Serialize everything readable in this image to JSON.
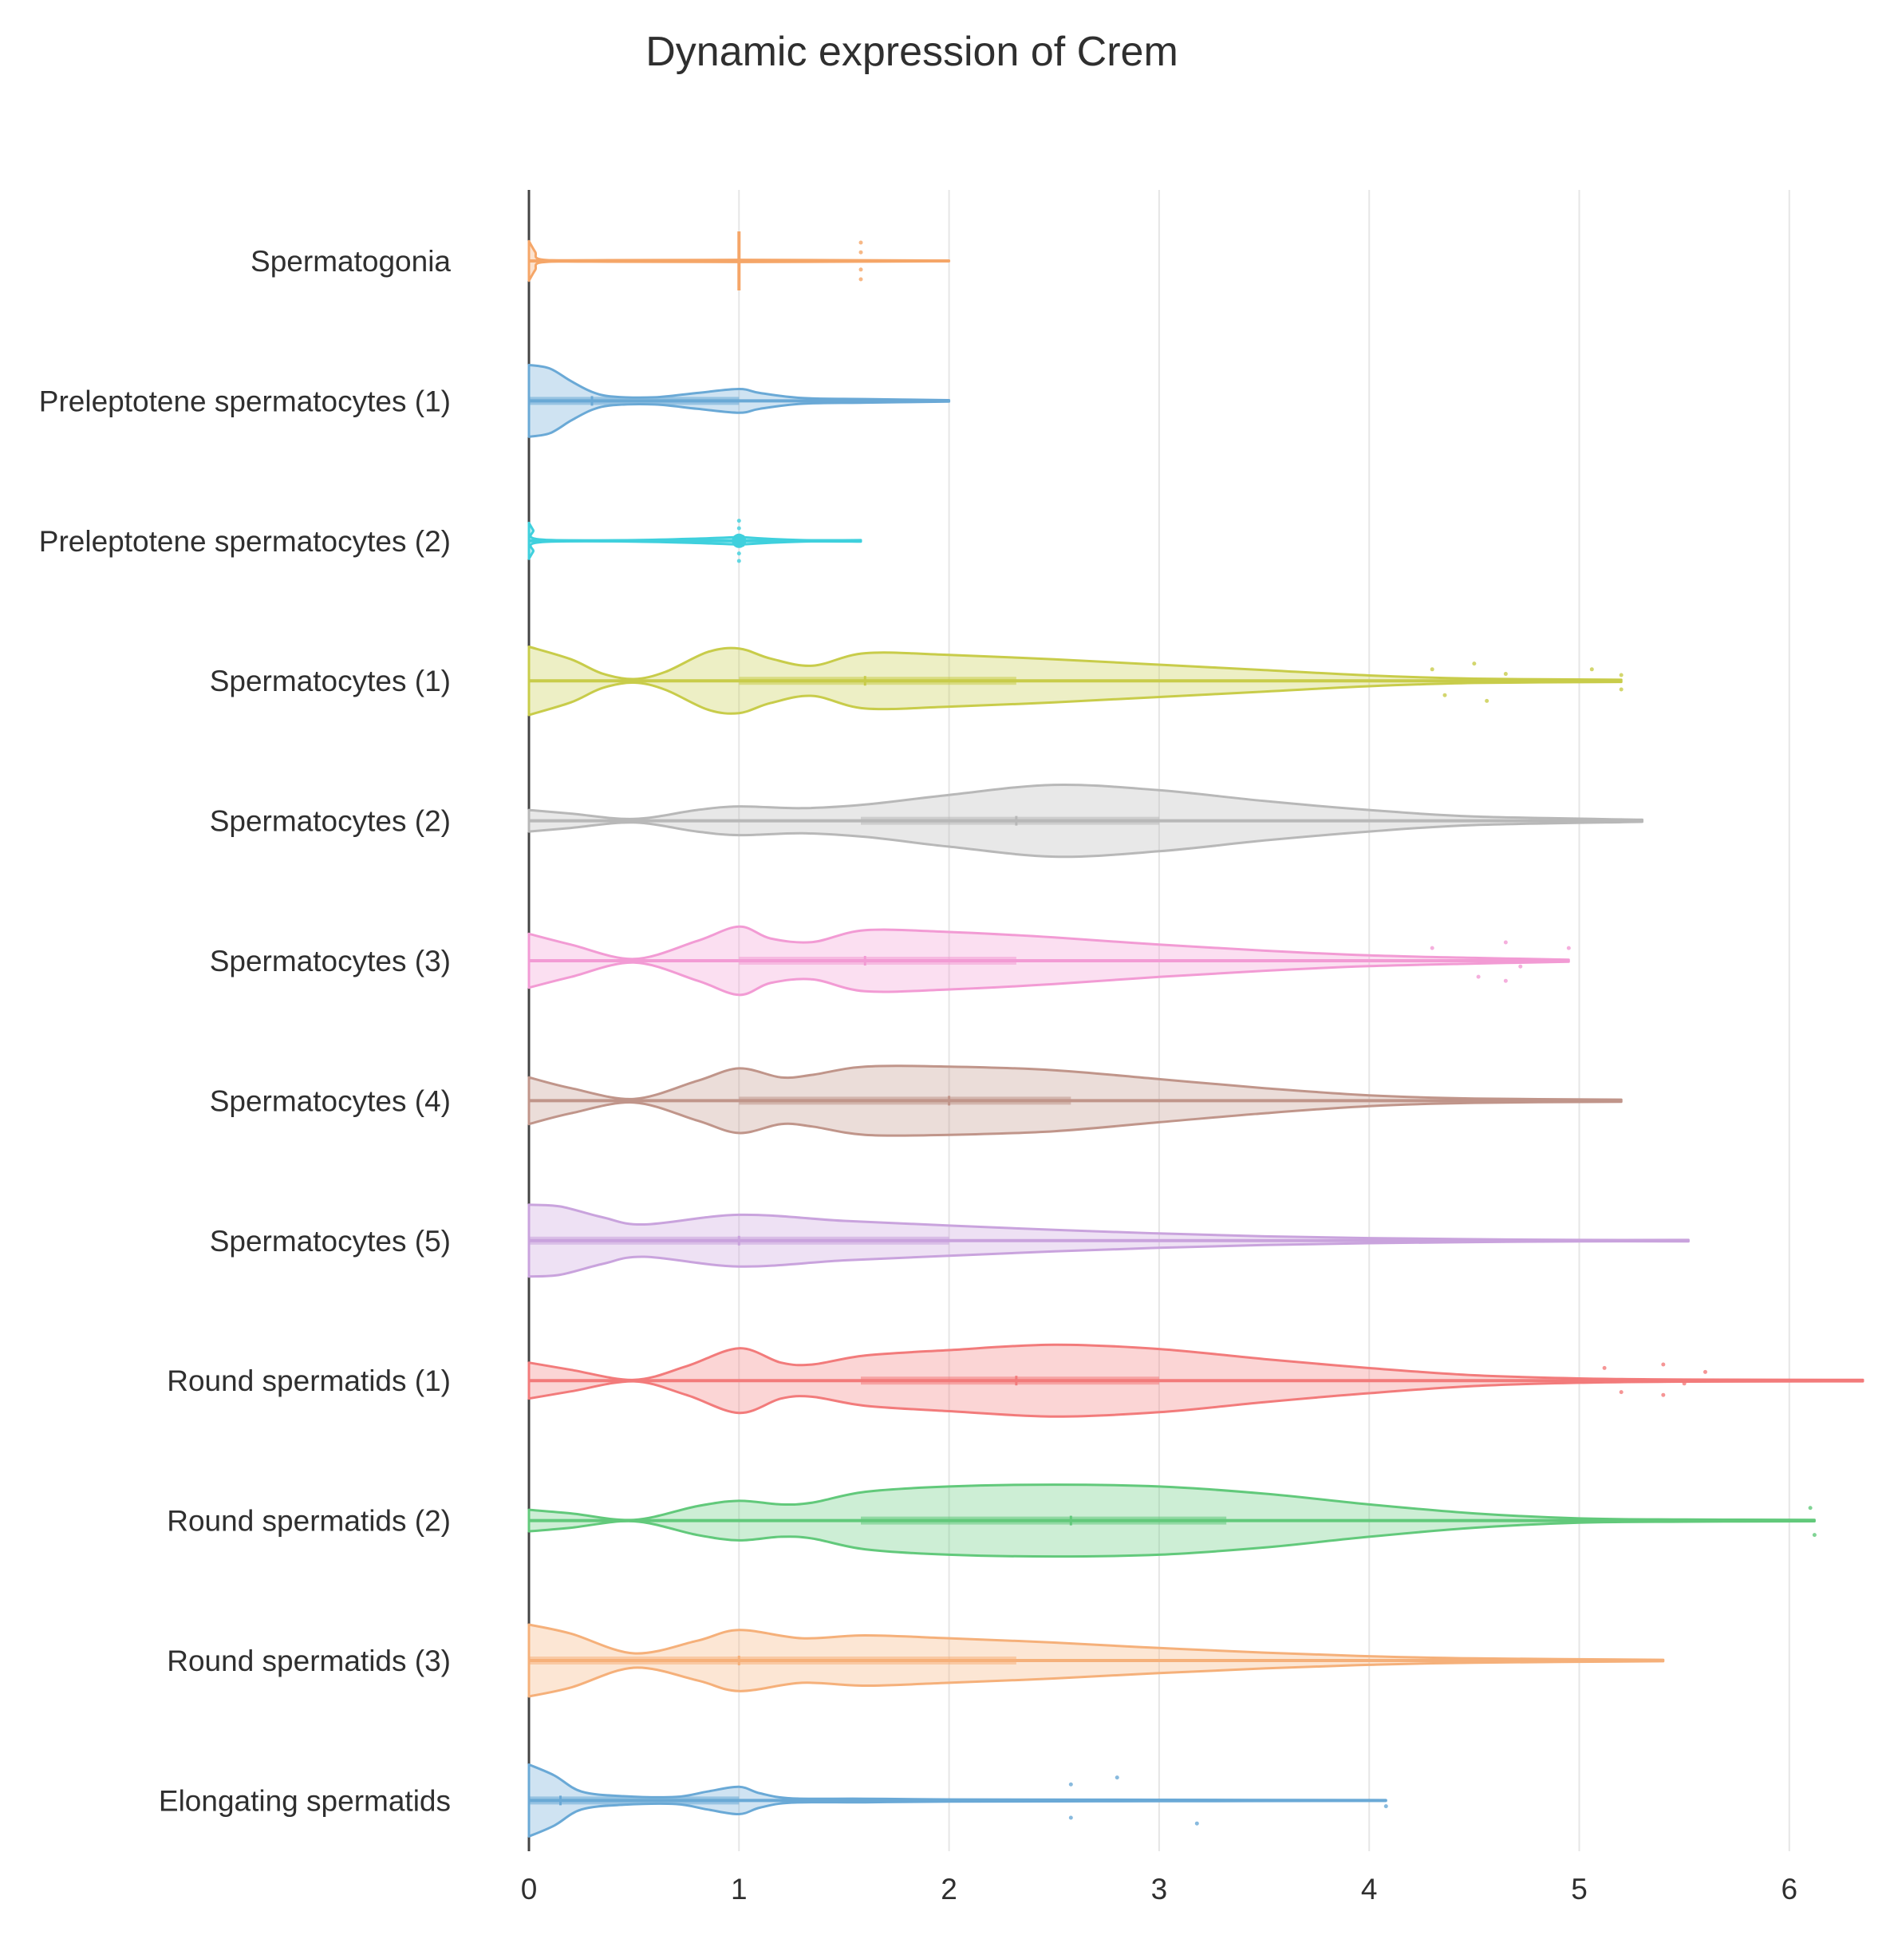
{
  "chart_data": {
    "type": "violin",
    "orientation": "horizontal",
    "title": "Dynamic expression of Crem",
    "xlabel": "",
    "ylabel": "",
    "xlim": [
      0,
      6.35
    ],
    "xticks": [
      0,
      1,
      2,
      3,
      4,
      5,
      6
    ],
    "grid": true,
    "legend": "none",
    "series": [
      {
        "name": "Spermatogonia",
        "color": "#f5a668",
        "max": 2.0,
        "q1": 1.0,
        "median": 1.0,
        "q3": 1.0,
        "density": [
          [
            0,
            0.55
          ],
          [
            0.03,
            0.25
          ],
          [
            0.06,
            0.04
          ],
          [
            0.3,
            0.02
          ],
          [
            1,
            0.03
          ],
          [
            2,
            0.01
          ]
        ],
        "outliers": [
          [
            1.58,
            -0.32
          ],
          [
            1.58,
            0.32
          ],
          [
            1.58,
            -0.15
          ],
          [
            1.58,
            0.15
          ]
        ]
      },
      {
        "name": "Preleptotene spermatocytes (1)",
        "color": "#6aa9d6",
        "max": 2.0,
        "q1": 0.0,
        "median": 0.3,
        "q3": 1.0,
        "density": [
          [
            0,
            1
          ],
          [
            0.1,
            0.9
          ],
          [
            0.2,
            0.55
          ],
          [
            0.3,
            0.25
          ],
          [
            0.4,
            0.12
          ],
          [
            0.6,
            0.1
          ],
          [
            0.8,
            0.22
          ],
          [
            1,
            0.33
          ],
          [
            1.1,
            0.22
          ],
          [
            1.3,
            0.08
          ],
          [
            1.6,
            0.05
          ],
          [
            2,
            0.02
          ]
        ],
        "outliers": []
      },
      {
        "name": "Preleptotene spermatocytes (2)",
        "color": "#3fd0dd",
        "max": 1.58,
        "q1": 1.0,
        "median": 1.0,
        "q3": 1.0,
        "density": [
          [
            0,
            0.5
          ],
          [
            0.02,
            0.3
          ],
          [
            0.05,
            0.04
          ],
          [
            0.5,
            0.02
          ],
          [
            0.98,
            0.1
          ],
          [
            1.0,
            0.15
          ],
          [
            1.02,
            0.1
          ],
          [
            1.3,
            0.02
          ],
          [
            1.58,
            0.02
          ]
        ],
        "outliers": [
          [
            1.0,
            -0.35
          ],
          [
            1.0,
            0.35
          ],
          [
            1.0,
            -0.22
          ],
          [
            1.0,
            0.22
          ]
        ]
      },
      {
        "name": "Spermatocytes (1)",
        "color": "#c8cc4a",
        "max": 5.2,
        "q1": 1.0,
        "median": 1.6,
        "q3": 2.32,
        "density": [
          [
            0,
            0.95
          ],
          [
            0.2,
            0.6
          ],
          [
            0.35,
            0.2
          ],
          [
            0.5,
            0.05
          ],
          [
            0.65,
            0.25
          ],
          [
            0.85,
            0.8
          ],
          [
            1,
            0.9
          ],
          [
            1.15,
            0.62
          ],
          [
            1.35,
            0.42
          ],
          [
            1.6,
            0.77
          ],
          [
            2,
            0.72
          ],
          [
            2.5,
            0.6
          ],
          [
            3,
            0.45
          ],
          [
            3.5,
            0.3
          ],
          [
            4,
            0.15
          ],
          [
            4.5,
            0.06
          ],
          [
            5.2,
            0.03
          ]
        ],
        "outliers": [
          [
            4.3,
            -0.2
          ],
          [
            4.5,
            -0.3
          ],
          [
            4.65,
            -0.12
          ],
          [
            5.06,
            -0.2
          ],
          [
            5.2,
            -0.1
          ],
          [
            4.36,
            0.25
          ],
          [
            4.56,
            0.35
          ],
          [
            5.2,
            0.15
          ]
        ]
      },
      {
        "name": "Spermatocytes (2)",
        "color": "#b8b8b8",
        "max": 5.3,
        "q1": 1.58,
        "median": 2.32,
        "q3": 3.0,
        "density": [
          [
            0,
            0.3
          ],
          [
            0.2,
            0.2
          ],
          [
            0.5,
            0.05
          ],
          [
            0.8,
            0.3
          ],
          [
            1,
            0.4
          ],
          [
            1.3,
            0.35
          ],
          [
            1.6,
            0.45
          ],
          [
            2,
            0.72
          ],
          [
            2.5,
            1.0
          ],
          [
            3,
            0.85
          ],
          [
            3.5,
            0.55
          ],
          [
            4,
            0.3
          ],
          [
            4.5,
            0.12
          ],
          [
            5.3,
            0.03
          ]
        ],
        "outliers": []
      },
      {
        "name": "Spermatocytes (3)",
        "color": "#f29bd4",
        "max": 4.95,
        "q1": 1.0,
        "median": 1.6,
        "q3": 2.32,
        "density": [
          [
            0,
            0.75
          ],
          [
            0.2,
            0.45
          ],
          [
            0.5,
            0.05
          ],
          [
            0.8,
            0.55
          ],
          [
            1,
            0.95
          ],
          [
            1.15,
            0.62
          ],
          [
            1.35,
            0.52
          ],
          [
            1.6,
            0.85
          ],
          [
            2,
            0.8
          ],
          [
            2.5,
            0.65
          ],
          [
            3,
            0.45
          ],
          [
            3.5,
            0.28
          ],
          [
            4,
            0.15
          ],
          [
            4.5,
            0.08
          ],
          [
            4.95,
            0.03
          ]
        ],
        "outliers": [
          [
            4.3,
            -0.22
          ],
          [
            4.65,
            -0.32
          ],
          [
            4.95,
            -0.22
          ],
          [
            4.52,
            0.28
          ],
          [
            4.65,
            0.35
          ],
          [
            4.72,
            0.1
          ]
        ]
      },
      {
        "name": "Spermatocytes (4)",
        "color": "#c0958a",
        "max": 5.2,
        "q1": 1.0,
        "median": 2.0,
        "q3": 2.58,
        "density": [
          [
            0,
            0.65
          ],
          [
            0.2,
            0.35
          ],
          [
            0.5,
            0.05
          ],
          [
            0.8,
            0.55
          ],
          [
            1,
            0.9
          ],
          [
            1.2,
            0.65
          ],
          [
            1.35,
            0.72
          ],
          [
            1.6,
            0.95
          ],
          [
            2,
            0.95
          ],
          [
            2.5,
            0.85
          ],
          [
            3,
            0.6
          ],
          [
            3.5,
            0.35
          ],
          [
            4,
            0.15
          ],
          [
            4.5,
            0.06
          ],
          [
            5.2,
            0.03
          ]
        ],
        "outliers": []
      },
      {
        "name": "Spermatocytes (5)",
        "color": "#c9a3dd",
        "max": 5.52,
        "q1": 0.0,
        "median": 1.0,
        "q3": 2.0,
        "density": [
          [
            0,
            1
          ],
          [
            0.15,
            0.95
          ],
          [
            0.35,
            0.65
          ],
          [
            0.55,
            0.45
          ],
          [
            1,
            0.72
          ],
          [
            1.5,
            0.55
          ],
          [
            2,
            0.42
          ],
          [
            2.5,
            0.3
          ],
          [
            3,
            0.2
          ],
          [
            3.5,
            0.12
          ],
          [
            4,
            0.07
          ],
          [
            4.5,
            0.04
          ],
          [
            5,
            0.02
          ],
          [
            5.52,
            0.02
          ]
        ],
        "outliers": []
      },
      {
        "name": "Round spermatids (1)",
        "color": "#f27b7b",
        "max": 6.35,
        "q1": 1.58,
        "median": 2.32,
        "q3": 3.0,
        "density": [
          [
            0,
            0.5
          ],
          [
            0.2,
            0.3
          ],
          [
            0.5,
            0.02
          ],
          [
            0.75,
            0.4
          ],
          [
            1,
            0.9
          ],
          [
            1.2,
            0.5
          ],
          [
            1.35,
            0.45
          ],
          [
            1.6,
            0.7
          ],
          [
            2,
            0.85
          ],
          [
            2.5,
            1.0
          ],
          [
            3,
            0.88
          ],
          [
            3.5,
            0.6
          ],
          [
            4,
            0.35
          ],
          [
            4.5,
            0.15
          ],
          [
            5,
            0.06
          ],
          [
            5.5,
            0.03
          ],
          [
            6.35,
            0.02
          ]
        ],
        "outliers": [
          [
            5.12,
            -0.22
          ],
          [
            5.4,
            -0.28
          ],
          [
            5.6,
            -0.15
          ],
          [
            5.2,
            0.2
          ],
          [
            5.4,
            0.25
          ],
          [
            5.5,
            0.05
          ]
        ]
      },
      {
        "name": "Round spermatids (2)",
        "color": "#62c97b",
        "max": 6.12,
        "q1": 1.58,
        "median": 2.58,
        "q3": 3.32,
        "density": [
          [
            0,
            0.3
          ],
          [
            0.2,
            0.2
          ],
          [
            0.5,
            0.02
          ],
          [
            0.8,
            0.4
          ],
          [
            1,
            0.55
          ],
          [
            1.2,
            0.45
          ],
          [
            1.35,
            0.5
          ],
          [
            1.6,
            0.8
          ],
          [
            2,
            0.95
          ],
          [
            2.5,
            1.0
          ],
          [
            3,
            0.95
          ],
          [
            3.5,
            0.75
          ],
          [
            4,
            0.45
          ],
          [
            4.5,
            0.2
          ],
          [
            5,
            0.06
          ],
          [
            5.5,
            0.03
          ],
          [
            6.12,
            0.02
          ]
        ],
        "outliers": [
          [
            6.1,
            -0.22
          ],
          [
            6.12,
            0.25
          ]
        ]
      },
      {
        "name": "Round spermatids (3)",
        "color": "#f5b07a",
        "max": 5.4,
        "q1": 0.0,
        "median": 1.0,
        "q3": 2.32,
        "density": [
          [
            0,
            1
          ],
          [
            0.2,
            0.75
          ],
          [
            0.5,
            0.2
          ],
          [
            0.8,
            0.55
          ],
          [
            1,
            0.85
          ],
          [
            1.3,
            0.62
          ],
          [
            1.6,
            0.7
          ],
          [
            2,
            0.62
          ],
          [
            2.5,
            0.5
          ],
          [
            3,
            0.35
          ],
          [
            3.5,
            0.22
          ],
          [
            4,
            0.12
          ],
          [
            4.5,
            0.06
          ],
          [
            5.4,
            0.02
          ]
        ],
        "outliers": []
      },
      {
        "name": "Elongating spermatids",
        "color": "#6aa9d6",
        "max": 4.08,
        "q1": 0.0,
        "median": 0.15,
        "q3": 1.0,
        "density": [
          [
            0,
            1
          ],
          [
            0.12,
            0.7
          ],
          [
            0.25,
            0.25
          ],
          [
            0.45,
            0.12
          ],
          [
            0.7,
            0.1
          ],
          [
            0.85,
            0.25
          ],
          [
            1,
            0.38
          ],
          [
            1.1,
            0.2
          ],
          [
            1.25,
            0.06
          ],
          [
            1.6,
            0.05
          ],
          [
            2,
            0.03
          ],
          [
            3,
            0.02
          ],
          [
            4.08,
            0.01
          ]
        ],
        "outliers": [
          [
            2.58,
            -0.28
          ],
          [
            2.8,
            -0.4
          ],
          [
            2.58,
            0.3
          ],
          [
            3.18,
            0.4
          ],
          [
            4.08,
            0.1
          ]
        ]
      }
    ]
  }
}
